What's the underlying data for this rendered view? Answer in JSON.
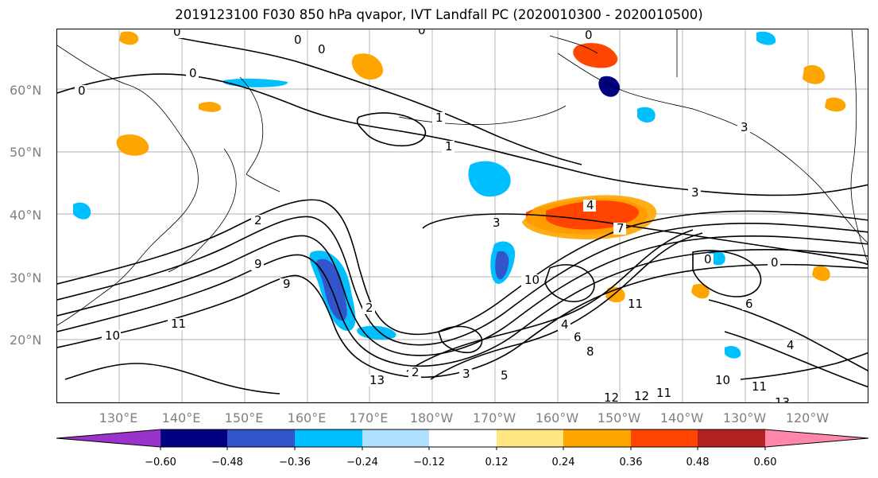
{
  "title": "2019123100 F030 850 hPa qvapor, IVT Landfall PC (2020010300 - 2020010500)",
  "lat_labels": [
    "60°N",
    "50°N",
    "40°N",
    "30°N",
    "20°N"
  ],
  "lon_labels": [
    "130°E",
    "140°E",
    "150°E",
    "160°E",
    "170°E",
    "180°W",
    "170°W",
    "160°W",
    "150°W",
    "140°W",
    "130°W",
    "120°W"
  ],
  "colorbar": {
    "ticks": [
      "−0.60",
      "−0.48",
      "−0.36",
      "−0.24",
      "−0.12",
      "0.12",
      "0.24",
      "0.36",
      "0.48",
      "0.60"
    ],
    "colors": [
      "#9933cc",
      "#000080",
      "#3355cc",
      "#00bfff",
      "#b0e0ff",
      "#ffffff",
      "#ffe680",
      "#ffa500",
      "#ff4500",
      "#b22222",
      "#ff88aa"
    ]
  },
  "contour_labels": [
    "0",
    "0",
    "0",
    "0",
    "0",
    "0",
    "0",
    "1",
    "1",
    "2",
    "3",
    "3",
    "4",
    "3",
    "2",
    "9",
    "9",
    "10",
    "10",
    "11",
    "11",
    "12",
    "13",
    "13",
    "12",
    "11",
    "10",
    "11",
    "4",
    "0",
    "6",
    "2",
    "4",
    "6",
    "8",
    "3",
    "7",
    "0",
    "5"
  ]
}
